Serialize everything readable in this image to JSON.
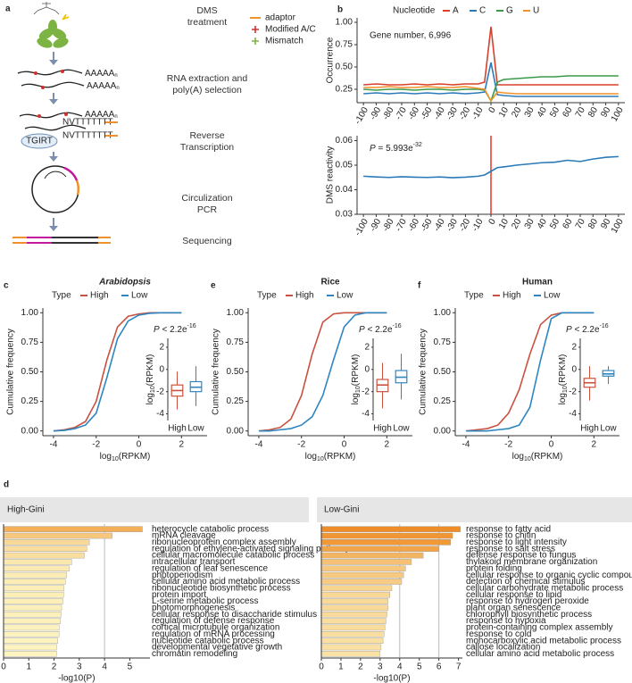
{
  "diagram": {
    "panel": "a",
    "steps": [
      [
        "DMS",
        "treatment"
      ],
      [
        "RNA extraction and",
        "poly(A) selection"
      ],
      [
        "Reverse",
        "Transcription"
      ],
      [
        "Circulization",
        "PCR"
      ],
      [
        "Sequencing"
      ]
    ],
    "legend": [
      "adaptor",
      "Modified A/C",
      "Mismatch"
    ],
    "polya": "AAAAA",
    "polya_sub": "n",
    "primer": "NVTTTTTTT",
    "enzyme": "TGIRT"
  },
  "chart_data": [
    {
      "type": "line",
      "panel": "b",
      "legend_title": "Nucleotide",
      "ylabel": "Occurrence",
      "annotation": "Gene number, 6,996",
      "x": [
        -100,
        -90,
        -80,
        -70,
        -60,
        -50,
        -40,
        -30,
        -20,
        -10,
        -5,
        0,
        5,
        10,
        20,
        30,
        40,
        50,
        60,
        70,
        80,
        90,
        100
      ],
      "series": [
        {
          "name": "A",
          "color": "#d7402b",
          "values": [
            0.3,
            0.31,
            0.3,
            0.3,
            0.31,
            0.3,
            0.31,
            0.3,
            0.31,
            0.31,
            0.33,
            0.95,
            0.3,
            0.3,
            0.3,
            0.3,
            0.3,
            0.3,
            0.3,
            0.3,
            0.3,
            0.3,
            0.3
          ]
        },
        {
          "name": "C",
          "color": "#2b7bba",
          "values": [
            0.2,
            0.21,
            0.2,
            0.21,
            0.2,
            0.21,
            0.2,
            0.21,
            0.2,
            0.21,
            0.22,
            0.55,
            0.19,
            0.18,
            0.17,
            0.17,
            0.17,
            0.17,
            0.17,
            0.17,
            0.17,
            0.17,
            0.17
          ]
        },
        {
          "name": "G",
          "color": "#3a9a4a",
          "values": [
            0.25,
            0.24,
            0.25,
            0.25,
            0.24,
            0.25,
            0.25,
            0.24,
            0.25,
            0.25,
            0.24,
            0.12,
            0.33,
            0.36,
            0.37,
            0.38,
            0.39,
            0.39,
            0.4,
            0.4,
            0.4,
            0.4,
            0.4
          ]
        },
        {
          "name": "U",
          "color": "#f0922b",
          "values": [
            0.27,
            0.27,
            0.28,
            0.27,
            0.27,
            0.28,
            0.27,
            0.27,
            0.28,
            0.26,
            0.25,
            0.12,
            0.22,
            0.21,
            0.2,
            0.2,
            0.2,
            0.2,
            0.2,
            0.2,
            0.2,
            0.2,
            0.2
          ]
        }
      ],
      "xlim": [
        -105,
        105
      ],
      "xticks": [
        -100,
        -90,
        -80,
        -70,
        -60,
        -50,
        -40,
        -30,
        -20,
        -10,
        0,
        10,
        20,
        30,
        40,
        50,
        60,
        70,
        80,
        90,
        100
      ],
      "ylim": [
        0.1,
        1.05
      ],
      "yticks": [
        0.25,
        {
          "value": 0.5,
          "label": "0.50"
        },
        0.75,
        {
          "value": 1,
          "label": "1.00"
        }
      ]
    },
    {
      "type": "line",
      "ylabel": "DMS reactivity",
      "annotation": {
        "p": "P",
        "text": " = 5.993e",
        "sup": "-32"
      },
      "x": [
        -100,
        -90,
        -80,
        -70,
        -60,
        -50,
        -40,
        -30,
        -20,
        -10,
        -5,
        0,
        5,
        10,
        20,
        30,
        40,
        50,
        60,
        70,
        80,
        90,
        100
      ],
      "series": [
        {
          "color": "#2a7ab8",
          "values": [
            0.0455,
            0.0452,
            0.045,
            0.0453,
            0.0451,
            0.045,
            0.0452,
            0.0449,
            0.0451,
            0.0455,
            0.046,
            0.0475,
            0.049,
            0.0493,
            0.05,
            0.0505,
            0.051,
            0.0512,
            0.052,
            0.0515,
            0.0525,
            0.0532,
            0.0535
          ]
        }
      ],
      "vline": {
        "x": 0,
        "color": "#e8322a"
      },
      "xlim": [
        -105,
        105
      ],
      "xticks": [
        -100,
        -90,
        -80,
        -70,
        -60,
        -50,
        -40,
        -30,
        -20,
        -10,
        0,
        10,
        20,
        30,
        40,
        50,
        60,
        70,
        80,
        90,
        100
      ],
      "ylim": [
        0.03,
        0.062
      ],
      "yticks": [
        0.03,
        0.04,
        0.05,
        0.06
      ]
    },
    {
      "type": "line",
      "panel": "c",
      "title": "Arabidopsis",
      "title_italic": true,
      "legend_title": "Type",
      "ylabel": "Cumulative frequency",
      "xlabel": {
        "text": "log",
        "sub": "10",
        "suffix": "(RPKM)"
      },
      "x": [
        -4,
        -3.5,
        -3,
        -2.5,
        -2,
        -1.5,
        -1,
        -0.5,
        0,
        0.5,
        1,
        1.5,
        2
      ],
      "series": [
        {
          "name": "High",
          "color": "#c8523f",
          "values": [
            0,
            0.01,
            0.03,
            0.08,
            0.25,
            0.6,
            0.88,
            0.97,
            0.99,
            1,
            1,
            1,
            1
          ]
        },
        {
          "name": "Low",
          "color": "#2e86c1",
          "values": [
            0,
            0.005,
            0.02,
            0.05,
            0.15,
            0.45,
            0.78,
            0.93,
            0.98,
            0.995,
            1,
            1,
            1
          ]
        }
      ],
      "xlim": [
        -4.5,
        3.2
      ],
      "xticks": [
        -4,
        -2,
        0,
        2
      ],
      "ylim": [
        -0.04,
        1.04
      ],
      "yticks": [
        {
          "value": 0,
          "label": "0.00"
        },
        0.25,
        {
          "value": 0.5,
          "label": "0.50"
        },
        0.75,
        {
          "value": 1,
          "label": "1.00"
        }
      ],
      "inset": {
        "type": "box",
        "annotation": {
          "p": "P",
          "text": " < 2.2e",
          "sup": "-16"
        },
        "ylabel": {
          "text": "log",
          "sub": "10",
          "suffix": "(RPKM)"
        },
        "ylim": [
          -4.6,
          2.8
        ],
        "yticks": [
          -4,
          -2,
          0,
          2
        ],
        "series": [
          {
            "name": "High",
            "color": "#c8523f",
            "whisker_low": -3.6,
            "q1": -2.4,
            "median": -1.9,
            "q3": -1.4,
            "whisker_high": -0.2
          },
          {
            "name": "Low",
            "color": "#2e86c1",
            "whisker_low": -3.3,
            "q1": -2.0,
            "median": -1.6,
            "q3": -1.1,
            "whisker_high": 0.3
          }
        ]
      }
    },
    {
      "type": "line",
      "panel": "e",
      "title": "Rice",
      "legend_title": "Type",
      "ylabel": "Cumulative frequency",
      "xlabel": {
        "text": "log",
        "sub": "10",
        "suffix": "(RPKM)"
      },
      "x": [
        -4,
        -3.5,
        -3,
        -2.5,
        -2,
        -1.5,
        -1,
        -0.5,
        0,
        0.5,
        1,
        1.5,
        2
      ],
      "series": [
        {
          "name": "High",
          "color": "#c8523f",
          "values": [
            0,
            0.01,
            0.03,
            0.1,
            0.3,
            0.65,
            0.92,
            0.99,
            1,
            1,
            1,
            1,
            1
          ]
        },
        {
          "name": "Low",
          "color": "#2e86c1",
          "values": [
            0,
            0,
            0.01,
            0.02,
            0.05,
            0.12,
            0.3,
            0.6,
            0.88,
            0.98,
            1,
            1,
            1
          ]
        }
      ],
      "xlim": [
        -4.5,
        3.2
      ],
      "xticks": [
        -4,
        -2,
        0,
        2
      ],
      "ylim": [
        -0.04,
        1.04
      ],
      "yticks": [
        {
          "value": 0,
          "label": "0.00"
        },
        0.25,
        {
          "value": 0.5,
          "label": "0.50"
        },
        0.75,
        {
          "value": 1,
          "label": "1.00"
        }
      ],
      "inset": {
        "type": "box",
        "annotation": {
          "p": "P",
          "text": " < 2.2e",
          "sup": "-16"
        },
        "ylabel": {
          "text": "log",
          "sub": "10",
          "suffix": "(RPKM)"
        },
        "ylim": [
          -4.6,
          2.8
        ],
        "yticks": [
          -4,
          -2,
          0,
          2
        ],
        "series": [
          {
            "name": "High",
            "color": "#c8523f",
            "whisker_low": -3.5,
            "q1": -2.0,
            "median": -1.4,
            "q3": -0.9,
            "whisker_high": 0.6
          },
          {
            "name": "Low",
            "color": "#2e86c1",
            "whisker_low": -2.7,
            "q1": -1.2,
            "median": -0.7,
            "q3": -0.1,
            "whisker_high": 1.4
          }
        ]
      }
    },
    {
      "type": "line",
      "panel": "f",
      "title": "Human",
      "legend_title": "Type",
      "ylabel": "Cumulative frequency",
      "xlabel": {
        "text": "log",
        "sub": "10",
        "suffix": "(RPKM)"
      },
      "x": [
        -4,
        -3.5,
        -3,
        -2.5,
        -2,
        -1.5,
        -1,
        -0.5,
        0,
        0.5,
        1,
        1.5,
        2
      ],
      "series": [
        {
          "name": "High",
          "color": "#c8523f",
          "values": [
            0,
            0.01,
            0.02,
            0.05,
            0.15,
            0.35,
            0.65,
            0.9,
            0.98,
            1,
            1,
            1,
            1
          ]
        },
        {
          "name": "Low",
          "color": "#2e86c1",
          "values": [
            0,
            0,
            0,
            0.01,
            0.02,
            0.05,
            0.2,
            0.6,
            0.95,
            1,
            1,
            1,
            1
          ]
        }
      ],
      "xlim": [
        -4.5,
        3.2
      ],
      "xticks": [
        -4,
        -2,
        0,
        2
      ],
      "ylim": [
        -0.04,
        1.04
      ],
      "yticks": [
        {
          "value": 0,
          "label": "0.00"
        },
        0.25,
        {
          "value": 0.5,
          "label": "0.50"
        },
        0.75,
        {
          "value": 1,
          "label": "1.00"
        }
      ],
      "inset": {
        "type": "box",
        "annotation": {
          "p": "P",
          "text": " < 2.2e",
          "sup": "-16"
        },
        "ylabel": {
          "text": "log",
          "sub": "10",
          "suffix": "(RPKM)"
        },
        "ylim": [
          -4.6,
          2.8
        ],
        "yticks": [
          -4,
          -2,
          0,
          2
        ],
        "series": [
          {
            "name": "High",
            "color": "#c8523f",
            "whisker_low": -2.8,
            "q1": -1.6,
            "median": -1.2,
            "q3": -0.8,
            "whisker_high": 0.3
          },
          {
            "name": "Low",
            "color": "#2e86c1",
            "whisker_low": -1.3,
            "q1": -0.6,
            "median": -0.4,
            "q3": -0.1,
            "whisker_high": 0.3
          }
        ]
      }
    },
    {
      "type": "barh",
      "panel": "d",
      "title": "High-Gini",
      "xlabel": "-log10(P)",
      "categories": [
        "heterocycle catabolic process",
        "mRNA cleavage",
        "ribonucleoprotein complex assembly",
        "regulation of ethylene-activated signaling pathway",
        "cellular macromolecule catabolic process",
        "intracellular transport",
        "regulation of leaf senescence",
        "photoperiodism",
        "cellular amino acid metabolic process",
        "ribonucleotide biosynthetic process",
        "protein import",
        "L-serine metabolic process",
        "photomorphogenesis",
        "cellular response to disaccharide stimulus",
        "regulation of defense response",
        "cortical microtubule organization",
        "regulation of mRNA processing",
        "nucleotide catabolic process",
        "developmental vegetative growth",
        "chromatin remodeling"
      ],
      "values": [
        5.5,
        4.3,
        3.4,
        3.3,
        3.2,
        2.7,
        2.6,
        2.5,
        2.45,
        2.4,
        2.38,
        2.35,
        2.3,
        2.28,
        2.25,
        2.2,
        2.2,
        2.15,
        2.1,
        2.1
      ],
      "xlim": [
        0,
        5.8
      ],
      "xticks": [
        0,
        1,
        2,
        3,
        4,
        5
      ],
      "vlines": [
        4
      ],
      "color_scale": {
        "domain": [
          2,
          7.2
        ],
        "range": [
          "#fdf6c3",
          "#ef8c25"
        ]
      }
    },
    {
      "type": "barh",
      "title": "Low-Gini",
      "xlabel": "-log10(P)",
      "categories": [
        "response to fatty acid",
        "response to chitin",
        "response to light intensity",
        "response to salt stress",
        "defense response to fungus",
        "thylakoid membrane organization",
        "protein folding",
        "cellular response to organic cyclic compound",
        "detection of chemical stimulus",
        "cellular carbohydrate metabolic process",
        "cellular response to lipid",
        "response to hydrogen peroxide",
        "plant organ senescence",
        "chlorophyll biosynthetic process",
        "response to hypoxia",
        "protein-containing complex assembly",
        "response to cold",
        "monocarboxylic acid metabolic process",
        "callose localization",
        "cellular amino acid metabolic process"
      ],
      "values": [
        7.1,
        6.7,
        6.6,
        6.0,
        5.2,
        4.6,
        4.3,
        4.2,
        4.1,
        3.6,
        3.5,
        3.4,
        3.4,
        3.35,
        3.3,
        3.25,
        3.2,
        3.15,
        3.05,
        3.0
      ],
      "xlim": [
        0,
        7.2
      ],
      "xticks": [
        0,
        1,
        2,
        3,
        4,
        5,
        6,
        7
      ],
      "vlines": [
        4,
        6
      ],
      "color_scale": {
        "domain": [
          2,
          7.2
        ],
        "range": [
          "#fdf6c3",
          "#ef8c25"
        ]
      }
    }
  ]
}
